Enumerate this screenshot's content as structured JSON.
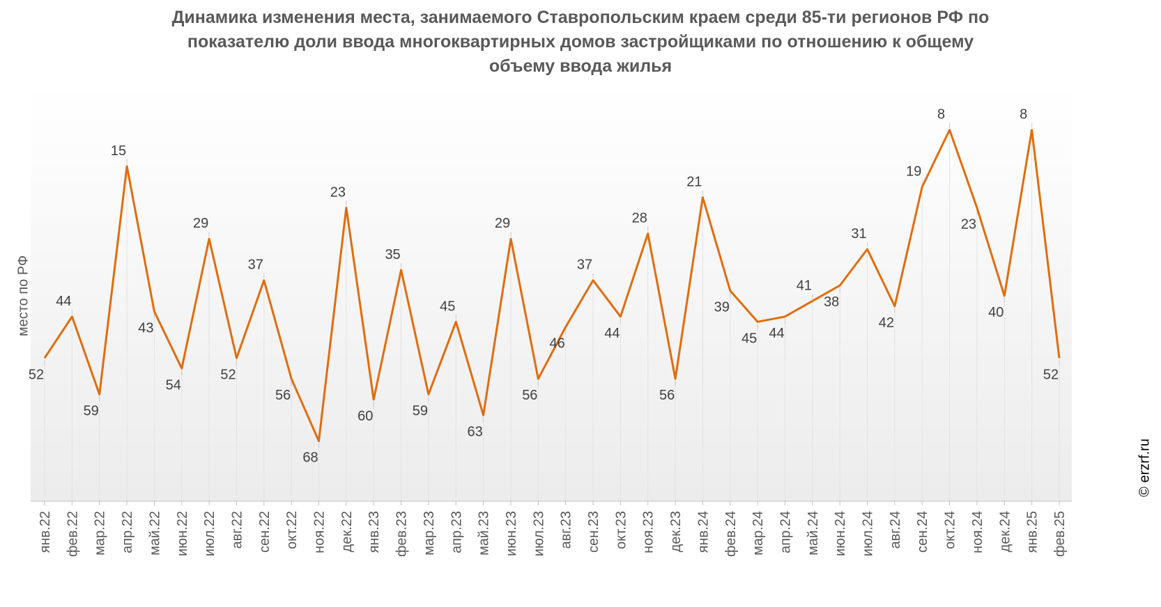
{
  "chart_data": {
    "type": "line",
    "title": "Динамика изменения места, занимаемого Ставропольским краем среди 85-ти регионов РФ по показателю доли ввода многоквартирных домов застройщиками по отношению к общему объему ввода жилья",
    "title_lines": [
      "Динамика изменения места, занимаемого Ставропольским краем среди 85-ти регионов РФ по",
      "показателю доли ввода многоквартирных домов застройщиками по отношению к общему",
      "объему ввода жилья"
    ],
    "xlabel": "",
    "ylabel": "место по РФ",
    "y_inverted": true,
    "grid": false,
    "categories": [
      "янв.22",
      "фев.22",
      "мар.22",
      "апр.22",
      "май.22",
      "июн.22",
      "июл.22",
      "авг.22",
      "сен.22",
      "окт.22",
      "ноя.22",
      "дек.22",
      "янв.23",
      "фев.23",
      "мар.23",
      "апр.23",
      "май.23",
      "июн.23",
      "июл.23",
      "авг.23",
      "сен.23",
      "окт.23",
      "ноя.23",
      "дек.23",
      "янв.24",
      "фев.24",
      "мар.24",
      "апр.24",
      "май.24",
      "июн.24",
      "июл.24",
      "авг.24",
      "сен.24",
      "окт.24",
      "ноя.24",
      "дек.24",
      "янв.25",
      "фев.25"
    ],
    "series": [
      {
        "values": [
          52,
          44,
          59,
          15,
          43,
          54,
          29,
          52,
          37,
          56,
          68,
          23,
          60,
          35,
          59,
          45,
          63,
          29,
          56,
          46,
          37,
          44,
          28,
          56,
          21,
          39,
          45,
          44,
          41,
          38,
          31,
          42,
          19,
          8,
          23,
          40,
          8,
          52
        ]
      }
    ],
    "label_side": [
      "below",
      "above",
      "below",
      "above",
      "below",
      "below",
      "above",
      "below",
      "above",
      "below",
      "below",
      "above",
      "below",
      "above",
      "below",
      "above",
      "below",
      "above",
      "below",
      "below",
      "above",
      "below",
      "above",
      "below",
      "above",
      "below",
      "below",
      "below",
      "above",
      "below",
      "above",
      "below",
      "above",
      "above",
      "below",
      "below",
      "above",
      "below"
    ],
    "colors": {
      "line": "#E06C0D",
      "text": "#595959",
      "axis": "#D0D0D0"
    }
  },
  "credit": "© erzrf.ru"
}
